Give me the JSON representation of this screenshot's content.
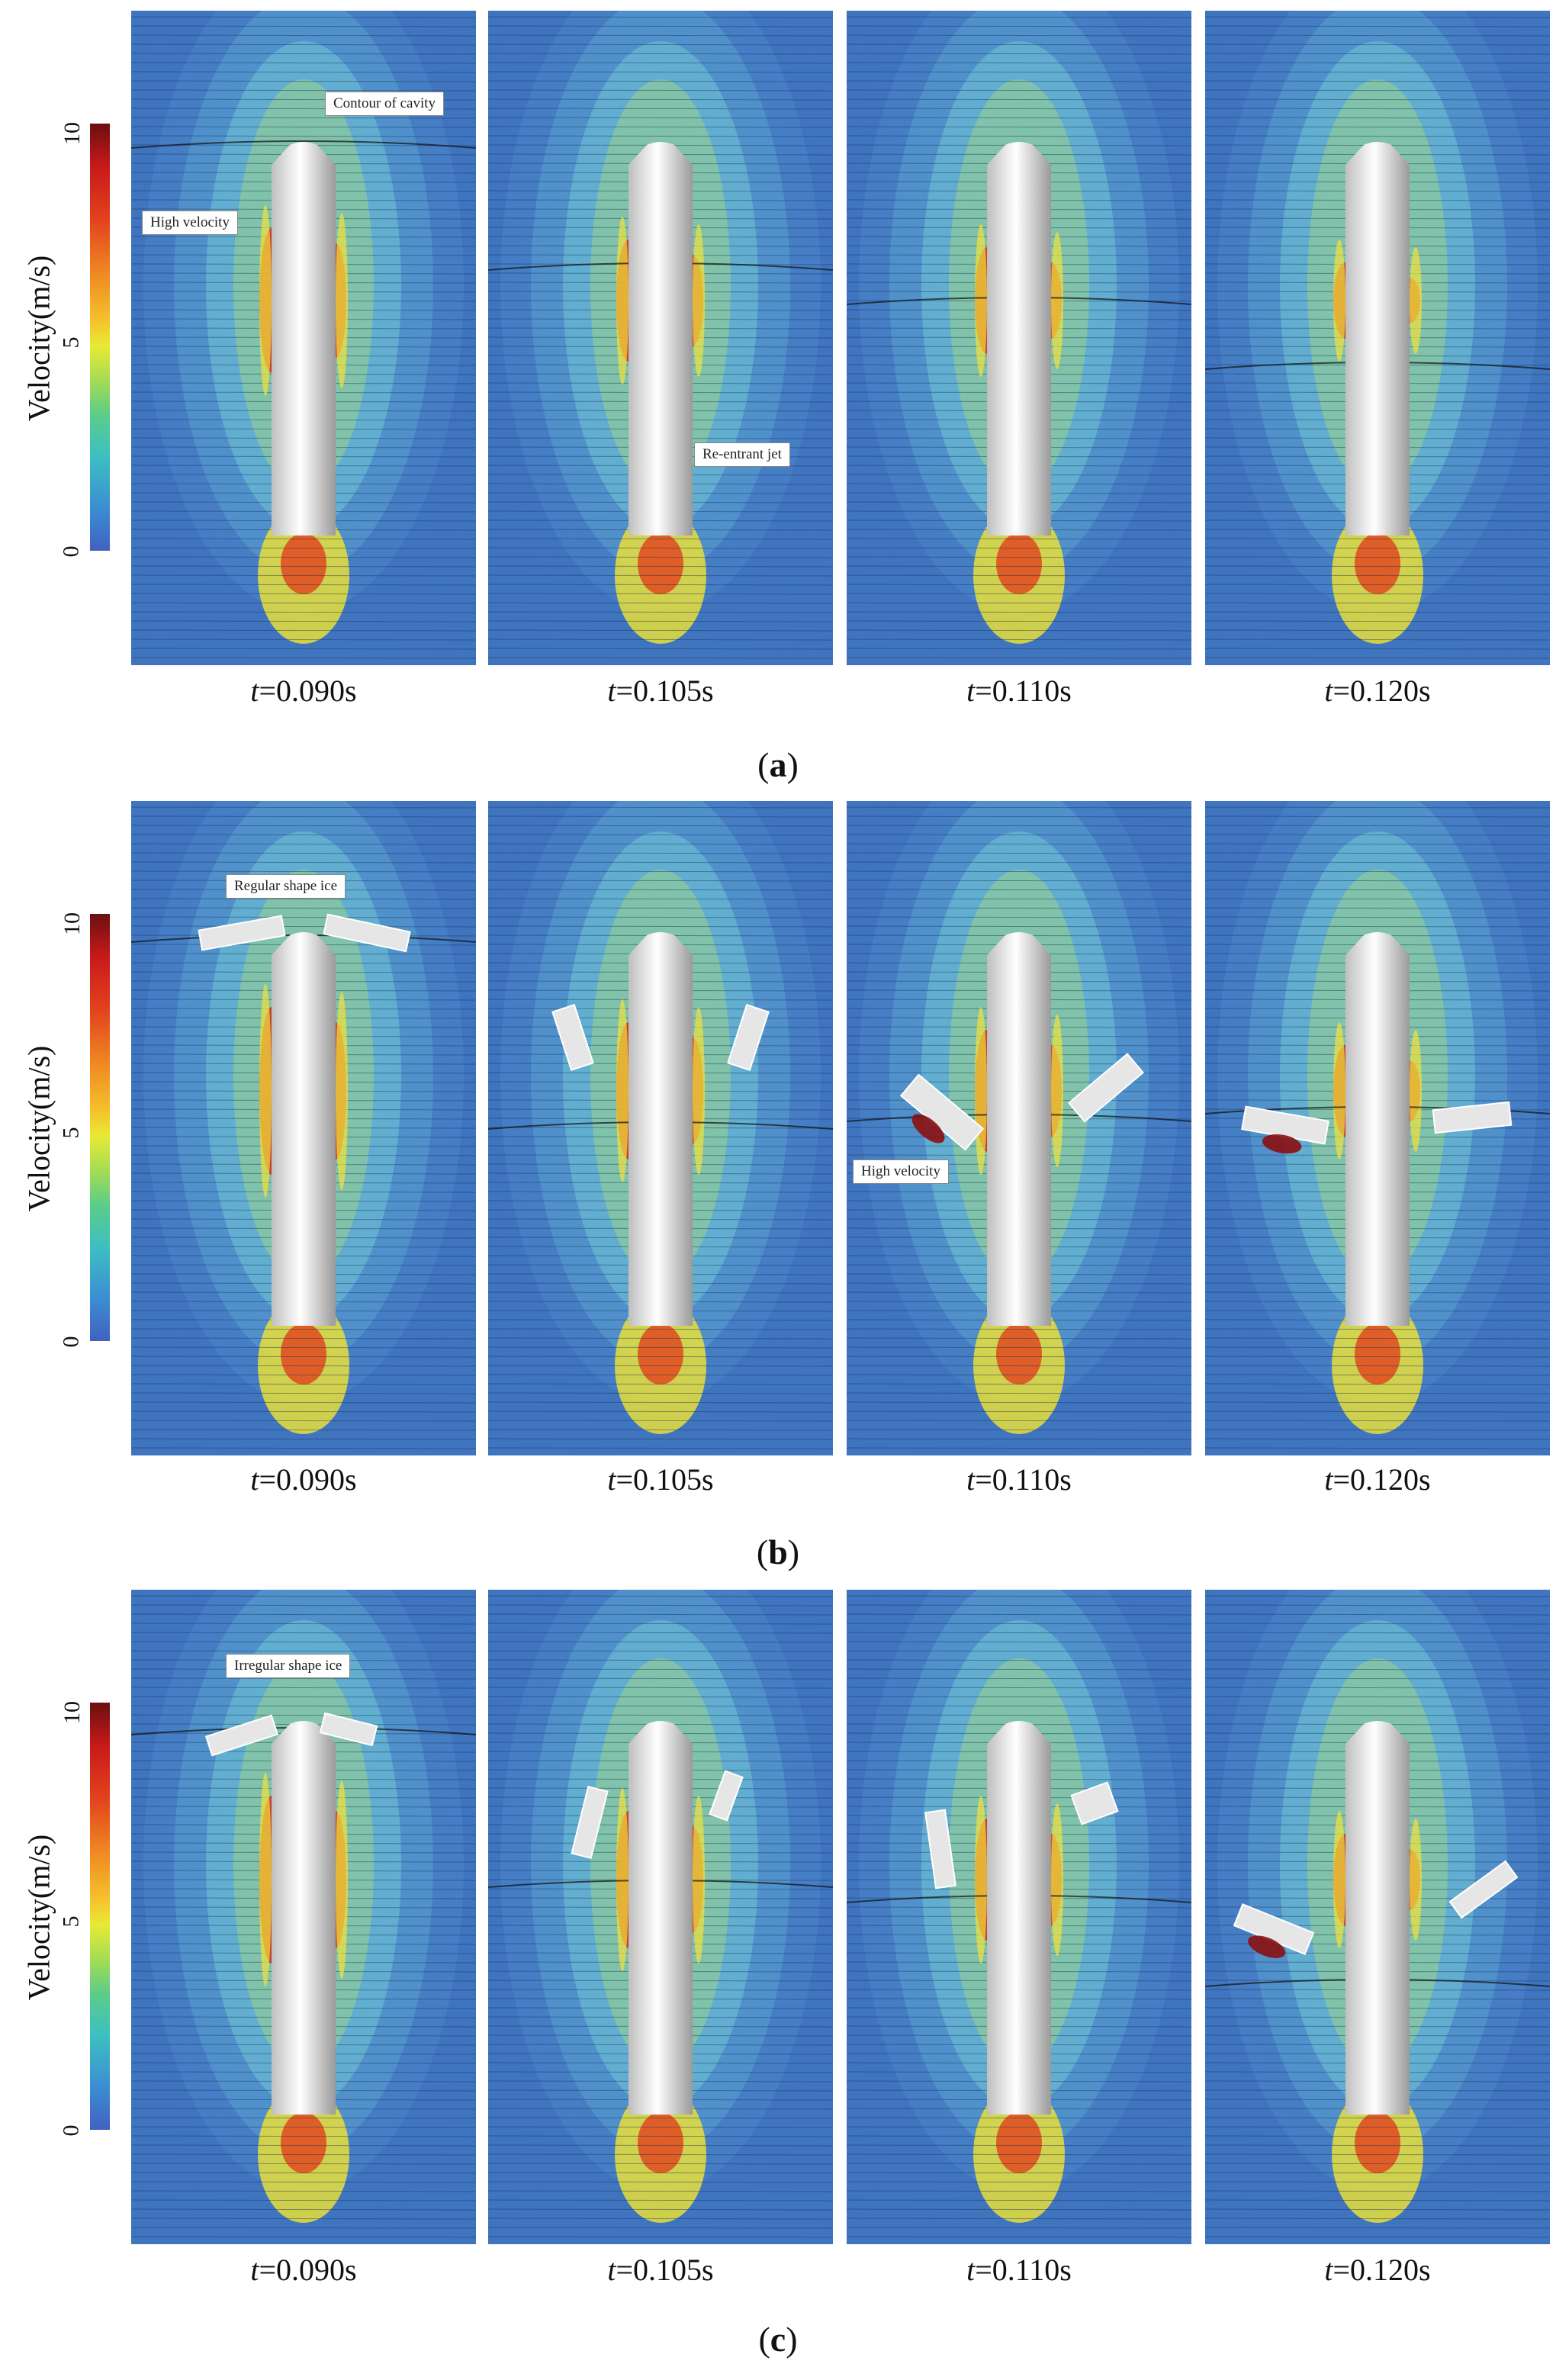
{
  "colorbar": {
    "title": "Velocity(m/s)",
    "max_label": "10",
    "mid_label": "5",
    "min_label": "0"
  },
  "rows": [
    {
      "id": "a",
      "label_open": "(",
      "label_letter": "a",
      "label_close": ")",
      "times": [
        "=0.090s",
        "=0.105s",
        "=0.110s",
        "=0.120s"
      ],
      "callouts": {
        "cavity": "Contour of cavity",
        "high_velocity": "High velocity",
        "reentrant": "Re-entrant jet"
      }
    },
    {
      "id": "b",
      "label_open": "(",
      "label_letter": "b",
      "label_close": ")",
      "times": [
        "=0.090s",
        "=0.105s",
        "=0.110s",
        "=0.120s"
      ],
      "callouts": {
        "ice": "Regular shape ice",
        "high_velocity": "High velocity"
      }
    },
    {
      "id": "c",
      "label_open": "(",
      "label_letter": "c",
      "label_close": ")",
      "times": [
        "=0.090s",
        "=0.105s",
        "=0.110s",
        "=0.120s"
      ],
      "callouts": {
        "ice": "Irregular shape ice"
      }
    }
  ],
  "time_prefix": "t",
  "colors": {
    "background_field": "#3f74bf",
    "low": "#4261c0",
    "high": "#6b0f0f"
  }
}
